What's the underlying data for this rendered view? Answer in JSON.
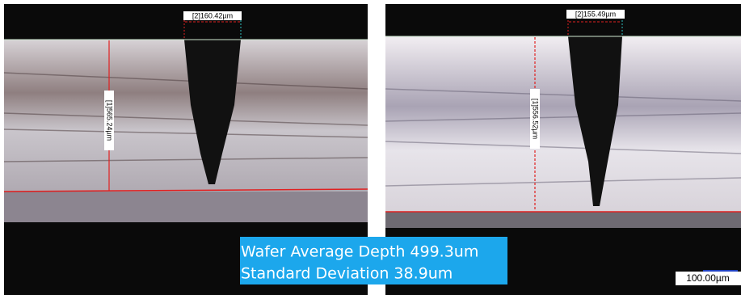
{
  "panels": [
    {
      "width_label": "[2]160.42µm",
      "depth_label": "[1]565.24µm"
    },
    {
      "width_label": "[2]155.49µm",
      "depth_label": "[1]556.52µm",
      "scale_bar": "100.00µm"
    }
  ],
  "annotation": {
    "lines": [
      "Wafer Average Depth 499.3um",
      "Standard Deviation 38.9um"
    ]
  }
}
